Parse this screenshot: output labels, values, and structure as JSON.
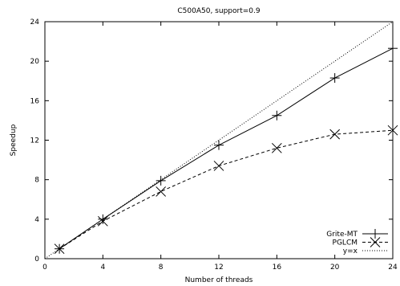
{
  "chart_data": {
    "type": "line",
    "title": "C500A50, support=0.9",
    "xlabel": "Number of threads",
    "ylabel": "Speedup",
    "xlim": [
      0,
      24
    ],
    "ylim": [
      0,
      24
    ],
    "xticks": [
      0,
      4,
      8,
      12,
      16,
      20,
      24
    ],
    "yticks": [
      0,
      4,
      8,
      12,
      16,
      20,
      24
    ],
    "grid": false,
    "legend_position": "bottom-right",
    "series": [
      {
        "name": "Grite-MT",
        "style": "solid",
        "marker": "plus",
        "color": "#000000",
        "x": [
          1,
          4,
          8,
          12,
          16,
          20,
          24
        ],
        "y": [
          1.0,
          4.0,
          7.9,
          11.5,
          14.5,
          18.3,
          21.3
        ]
      },
      {
        "name": "PGLCM",
        "style": "dashed",
        "marker": "cross",
        "color": "#000000",
        "x": [
          1,
          4,
          8,
          12,
          16,
          20,
          24
        ],
        "y": [
          1.0,
          3.8,
          6.8,
          9.4,
          11.2,
          12.6,
          13.0
        ]
      },
      {
        "name": "y=x",
        "style": "dotted",
        "marker": "none",
        "color": "#000000",
        "x": [
          0,
          24
        ],
        "y": [
          0,
          24
        ]
      }
    ]
  }
}
